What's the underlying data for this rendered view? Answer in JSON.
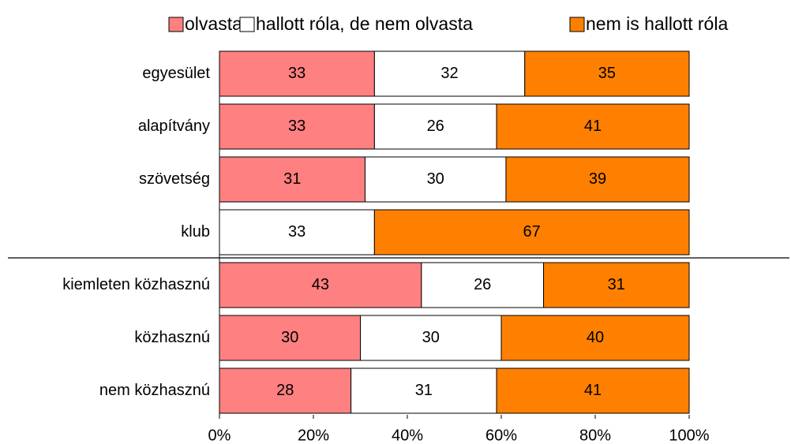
{
  "chart_data": {
    "type": "stacked_bar_horizontal",
    "categories": [
      "egyesület",
      "alapítvány",
      "szövetség",
      "klub",
      "kiemleten közhasznú",
      "közhasznú",
      "nem közhasznú"
    ],
    "series": [
      {
        "name": "olvasta",
        "color": "#ff8080",
        "values": [
          33,
          33,
          31,
          0,
          43,
          30,
          28
        ]
      },
      {
        "name": "hallott róla, de nem olvasta",
        "color": "#ffffff",
        "values": [
          32,
          26,
          30,
          33,
          26,
          30,
          31
        ]
      },
      {
        "name": "nem is hallott róla",
        "color": "#ff8000",
        "values": [
          35,
          41,
          39,
          67,
          31,
          40,
          41
        ]
      }
    ],
    "xlim": [
      0,
      100
    ],
    "xticks": [
      {
        "value": 0,
        "label": "0%"
      },
      {
        "value": 20,
        "label": "20%"
      },
      {
        "value": 40,
        "label": "40%"
      },
      {
        "value": 60,
        "label": "60%"
      },
      {
        "value": 80,
        "label": "80%"
      },
      {
        "value": 100,
        "label": "100%"
      }
    ],
    "legend": "top"
  }
}
